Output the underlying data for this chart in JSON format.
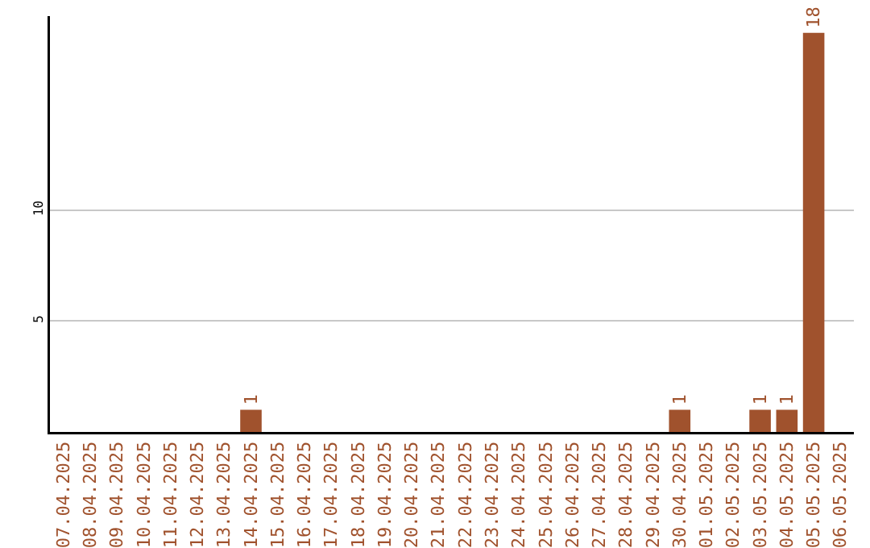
{
  "chart_data": {
    "type": "bar",
    "categories": [
      "07.04.2025",
      "08.04.2025",
      "09.04.2025",
      "10.04.2025",
      "11.04.2025",
      "12.04.2025",
      "13.04.2025",
      "14.04.2025",
      "15.04.2025",
      "16.04.2025",
      "17.04.2025",
      "18.04.2025",
      "19.04.2025",
      "20.04.2025",
      "21.04.2025",
      "22.04.2025",
      "23.04.2025",
      "24.04.2025",
      "25.04.2025",
      "26.04.2025",
      "27.04.2025",
      "28.04.2025",
      "29.04.2025",
      "30.04.2025",
      "01.05.2025",
      "02.05.2025",
      "03.05.2025",
      "04.05.2025",
      "05.05.2025",
      "06.05.2025"
    ],
    "values": [
      0,
      0,
      0,
      0,
      0,
      0,
      0,
      1,
      0,
      0,
      0,
      0,
      0,
      0,
      0,
      0,
      0,
      0,
      0,
      0,
      0,
      0,
      0,
      1,
      0,
      0,
      1,
      1,
      18,
      0
    ],
    "value_labels": [
      null,
      null,
      null,
      null,
      null,
      null,
      null,
      "1",
      null,
      null,
      null,
      null,
      null,
      null,
      null,
      null,
      null,
      null,
      null,
      null,
      null,
      null,
      null,
      "1",
      null,
      null,
      "1",
      "1",
      "18",
      null
    ],
    "color": "#a0522d",
    "ylim": [
      0,
      18.75
    ],
    "yticks": [
      5,
      10
    ],
    "grid": "y",
    "legend": false
  }
}
